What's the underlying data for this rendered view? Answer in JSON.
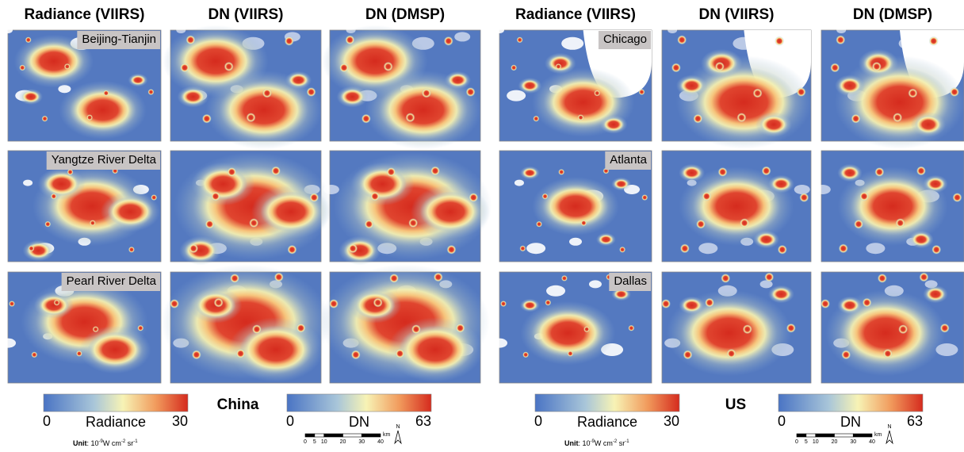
{
  "panels": [
    {
      "name": "China",
      "columns": [
        "Radiance (VIIRS)",
        "DN (VIIRS)",
        "DN (DMSP)"
      ],
      "regions": [
        "Beijing-Tianjin",
        "Yangtze River Delta",
        "Pearl River Delta"
      ],
      "colorbars": [
        {
          "min": 0,
          "label": "Radiance",
          "max": 30
        },
        {
          "min": 0,
          "label": "DN",
          "max": 63
        }
      ],
      "unit": {
        "label": "Unit",
        "base": ": 10",
        "exp1": "-9",
        "mid": "W cm",
        "exp2": "-2",
        "end": " sr",
        "exp3": "-1"
      },
      "scale": {
        "ticks": [
          0,
          5,
          10,
          20,
          30,
          40
        ],
        "unit": "km",
        "north": "N"
      }
    },
    {
      "name": "US",
      "columns": [
        "Radiance (VIIRS)",
        "DN (VIIRS)",
        "DN (DMSP)"
      ],
      "regions": [
        "Chicago",
        "Atlanta",
        "Dallas"
      ],
      "colorbars": [
        {
          "min": 0,
          "label": "Radiance",
          "max": 30
        },
        {
          "min": 0,
          "label": "DN",
          "max": 63
        }
      ],
      "unit": {
        "label": "Unit",
        "base": ": 10",
        "exp1": "-9",
        "mid": "W cm",
        "exp2": "-2",
        "end": " sr",
        "exp3": "-1"
      },
      "scale": {
        "ticks": [
          0,
          5,
          10,
          20,
          30,
          40
        ],
        "unit": "km",
        "north": "N"
      }
    }
  ]
}
